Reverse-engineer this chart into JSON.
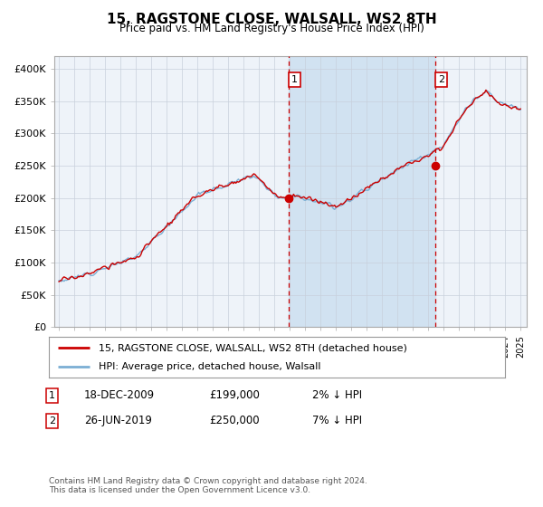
{
  "title": "15, RAGSTONE CLOSE, WALSALL, WS2 8TH",
  "subtitle": "Price paid vs. HM Land Registry's House Price Index (HPI)",
  "ylim": [
    0,
    420000
  ],
  "yticks": [
    0,
    50000,
    100000,
    150000,
    200000,
    250000,
    300000,
    350000,
    400000
  ],
  "ytick_labels": [
    "£0",
    "£50K",
    "£100K",
    "£150K",
    "£200K",
    "£250K",
    "£300K",
    "£350K",
    "£400K"
  ],
  "start_year": 1995,
  "end_year": 2025,
  "hpi_color": "#7bafd4",
  "price_color": "#cc0000",
  "bg_color": "#ffffff",
  "plot_bg_color": "#eef3f9",
  "grid_color": "#c8d0dc",
  "shade_color": "#cce0f0",
  "transaction1_date": 2009.96,
  "transaction1_value": 199000,
  "transaction2_date": 2019.48,
  "transaction2_value": 250000,
  "legend_label1": "15, RAGSTONE CLOSE, WALSALL, WS2 8TH (detached house)",
  "legend_label2": "HPI: Average price, detached house, Walsall",
  "annotation1_date": "18-DEC-2009",
  "annotation1_price": "£199,000",
  "annotation1_pct": "2% ↓ HPI",
  "annotation2_date": "26-JUN-2019",
  "annotation2_price": "£250,000",
  "annotation2_pct": "7% ↓ HPI",
  "footer": "Contains HM Land Registry data © Crown copyright and database right 2024.\nThis data is licensed under the Open Government Licence v3.0."
}
